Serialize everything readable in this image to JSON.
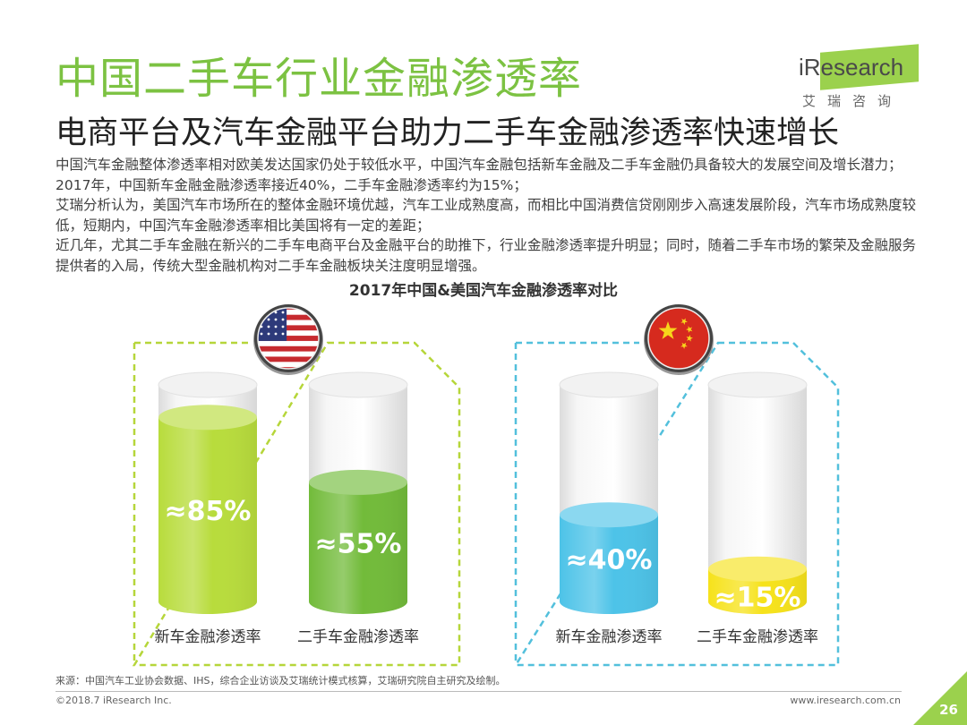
{
  "header": {
    "title": "中国二手车行业金融渗透率",
    "subtitle": "电商平台及汽车金融平台助力二手车金融渗透率快速增长"
  },
  "brand": {
    "logo_text": "iResearch",
    "logo_cn": "艾瑞咨询",
    "accent_color": "#9bd14d"
  },
  "paragraphs": [
    "中国汽车金融整体渗透率相对欧美发达国家仍处于较低水平，中国汽车金融包括新车金融及二手车金融仍具备较大的发展空间及增长潜力；2017年，中国新车金融金融渗透率接近40%，二手车金融渗透率约为15%；",
    "艾瑞分析认为，美国汽车市场所在的整体金融环境优越，汽车工业成熟度高，而相比中国消费信贷刚刚步入高速发展阶段，汽车市场成熟度较低，短期内，中国汽车金融渗透率相比美国将有一定的差距；",
    "近几年，尤其二手车金融在新兴的二手车电商平台及金融平台的助推下，行业金融渗透率提升明显；同时，随着二手车市场的繁荣及金融服务提供者的入局，传统大型金融机构对二手车金融板块关注度明显增强。"
  ],
  "chart_data": {
    "type": "bar",
    "title": "2017年中国&美国汽车金融渗透率对比",
    "groups": [
      {
        "flag": "us-flag-icon",
        "bars": [
          {
            "category": "新车金融渗透率",
            "value": 85,
            "label": "≈85%",
            "color": "#b8dc3c"
          },
          {
            "category": "二手车金融渗透率",
            "value": 55,
            "label": "≈55%",
            "color": "#72bb3a"
          }
        ]
      },
      {
        "flag": "china-flag-icon",
        "bars": [
          {
            "category": "新车金融渗透率",
            "value": 40,
            "label": "≈40%",
            "color": "#4dc3e8"
          },
          {
            "category": "二手车金融渗透率",
            "value": 15,
            "label": "≈15%",
            "color": "#f6e21b"
          }
        ]
      }
    ],
    "ylim": [
      0,
      100
    ],
    "border_colors": [
      "#b6d63a",
      "#53c0dc"
    ]
  },
  "footer": {
    "source": "来源：中国汽车工业协会数据、IHS，综合企业访谈及艾瑞统计模式核算，艾瑞研究院自主研究及绘制。",
    "copyright": "©2018.7 iResearch Inc.",
    "url": "www.iresearch.com.cn",
    "page_number": "26"
  }
}
